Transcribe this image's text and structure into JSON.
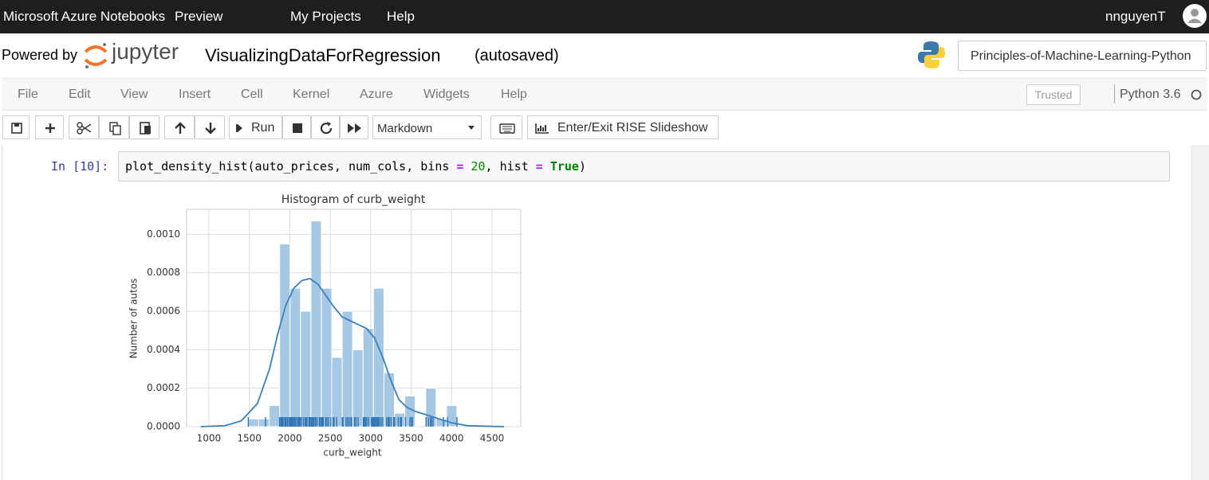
{
  "nav": {
    "brand": "Microsoft Azure Notebooks",
    "preview": "Preview",
    "links": [
      "My Projects",
      "Help"
    ],
    "user": "nnguyenT"
  },
  "header": {
    "powered_by": "Powered by",
    "logo_text": "jupyter",
    "notebook_name": "VisualizingDataForRegression",
    "status": "(autosaved)",
    "project": "Principles-of-Machine-Learning-Python"
  },
  "menu": {
    "items": [
      "File",
      "Edit",
      "View",
      "Insert",
      "Cell",
      "Kernel",
      "Azure",
      "Widgets",
      "Help"
    ],
    "trusted": "Trusted",
    "kernel": "Python 3.6"
  },
  "toolbar": {
    "run": "Run",
    "cell_type": "Markdown",
    "rise": "Enter/Exit RISE Slideshow"
  },
  "cell": {
    "prompt": "In [10]:",
    "code": [
      "plot_density_hist(auto_prices, num_cols, bins ",
      "=",
      " 20",
      ", hist ",
      "=",
      " True",
      ")"
    ]
  },
  "chart_data": {
    "type": "histogram",
    "title": "Histogram of curb_weight",
    "x_label": "curb_weight",
    "y_label": "Number of autos",
    "bins": [
      1488,
      1616.9,
      1745.8,
      1874.7,
      2003.6,
      2132.5,
      2261.4,
      2390.3,
      2519.2,
      2648.1,
      2777,
      2905.9,
      3034.8,
      3163.7,
      3292.6,
      3421.5,
      3550.4,
      3679.3,
      3808.2,
      3937.1,
      4066
    ],
    "values": [
      4e-05,
      4e-05,
      0.00011,
      0.00095,
      0.00072,
      0.0006,
      0.00107,
      0.00072,
      0.00036,
      0.0006,
      0.0004,
      0.00051,
      0.00072,
      0.00028,
      7e-05,
      0.00016,
      0,
      0.0002,
      4e-05,
      0.00011
    ],
    "color": "#a6c8e4",
    "kde": {
      "color": "#3a80ba",
      "x": [
        900,
        1200,
        1400,
        1600,
        1750,
        1850,
        1950,
        2050,
        2150,
        2250,
        2350,
        2450,
        2550,
        2650,
        2750,
        2850,
        2950,
        3050,
        3150,
        3250,
        3350,
        3450,
        3550,
        3700,
        3850,
        4000,
        4200,
        4650
      ],
      "values": [
        0,
        5e-06,
        3e-05,
        0.00012,
        0.0003,
        0.00048,
        0.00063,
        0.00072,
        0.00076,
        0.00077,
        0.00074,
        0.00068,
        0.00062,
        0.00057,
        0.00055,
        0.00053,
        0.00051,
        0.00046,
        0.00036,
        0.00024,
        0.00014,
        0.0001,
        8e-05,
        6e-05,
        4e-05,
        2e-05,
        5e-06,
        0
      ]
    },
    "rug": {
      "color": "#2f75b5",
      "x": [
        1488,
        1700,
        1874,
        1890,
        1900,
        1905,
        1909,
        1918,
        1938,
        1944,
        1950,
        1967,
        1971,
        1989,
        2004,
        2015,
        2024,
        2037,
        2050,
        2065,
        2075,
        2094,
        2109,
        2120,
        2128,
        2145,
        2169,
        2190,
        2204,
        2212,
        2236,
        2250,
        2265,
        2275,
        2290,
        2302,
        2319,
        2337,
        2365,
        2380,
        2395,
        2405,
        2414,
        2443,
        2460,
        2480,
        2507,
        2535,
        2548,
        2579,
        2650,
        2658,
        2695,
        2714,
        2734,
        2756,
        2765,
        2800,
        2818,
        2844,
        2910,
        2920,
        2935,
        2952,
        2975,
        3012,
        3020,
        3034,
        3045,
        3060,
        3071,
        3086,
        3095,
        3110,
        3131,
        3151,
        3197,
        3217,
        3230,
        3252,
        3285,
        3296,
        3340,
        3366,
        3380,
        3430,
        3485,
        3505,
        3515,
        3685,
        3715,
        3740,
        3750,
        3770,
        3900,
        3950,
        4066
      ]
    },
    "xlim": [
      725,
      4855
    ],
    "xticks": [
      1000,
      1500,
      2000,
      2500,
      3000,
      3500,
      4000,
      4500
    ],
    "ylim": [
      0,
      0.00113
    ],
    "yticks": [
      {
        "value": 0,
        "label": "0.0000"
      },
      {
        "value": 0.0002,
        "label": "0.0002"
      },
      {
        "value": 0.0004,
        "label": "0.0004"
      },
      {
        "value": 0.0006,
        "label": "0.0006"
      },
      {
        "value": 0.0008,
        "label": "0.0008"
      },
      {
        "value": 0.001,
        "label": "0.0010"
      }
    ],
    "grid": true
  }
}
